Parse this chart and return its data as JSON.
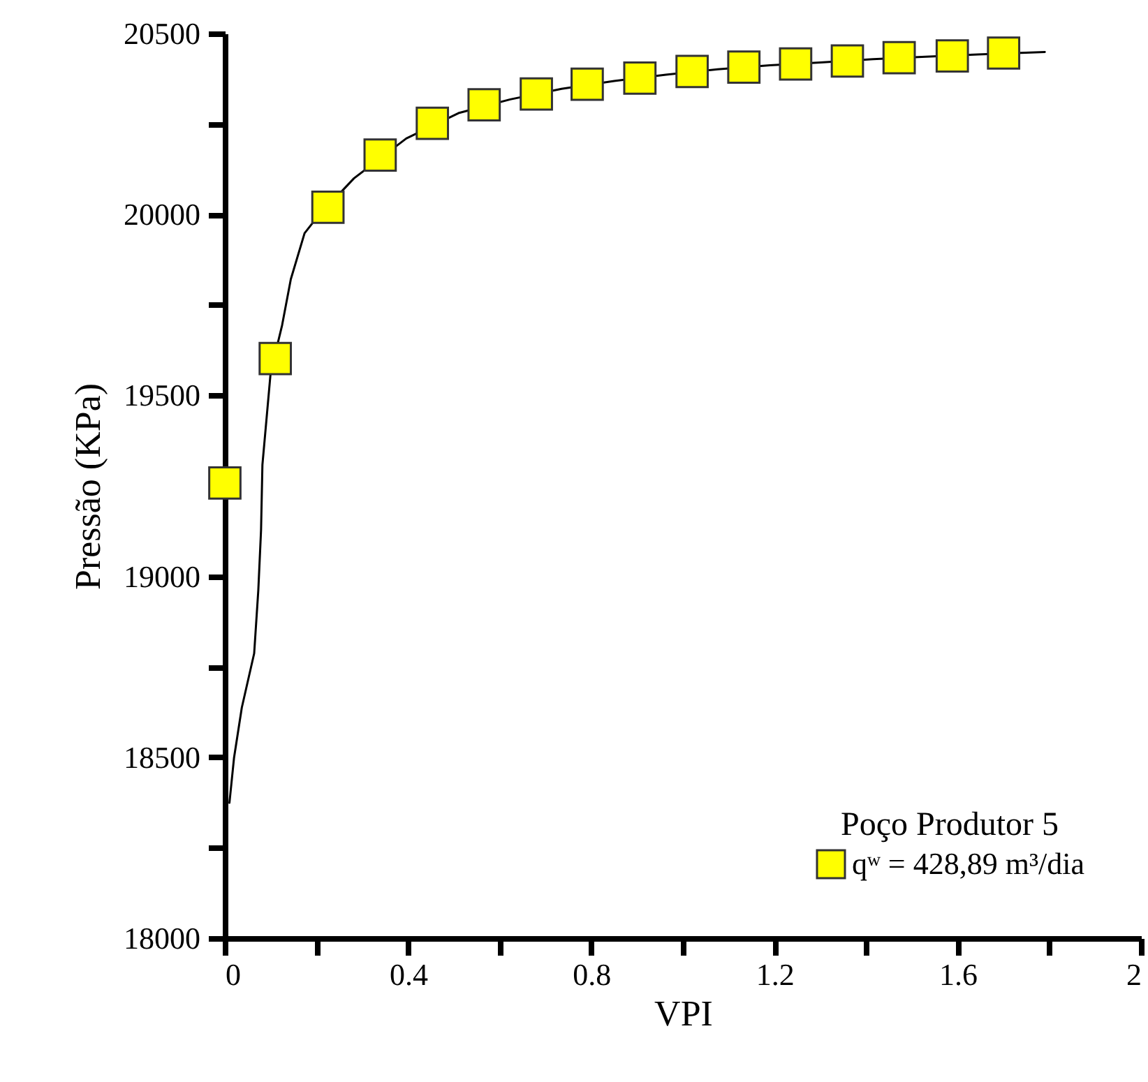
{
  "chart_data": {
    "type": "line",
    "xlabel": "VPI",
    "ylabel": "Pressão (KPa)",
    "legend_title": "Poço Produtor 5",
    "legend": "bottom right",
    "grid": false,
    "xlim": [
      0,
      2
    ],
    "ylim": [
      18000,
      20500
    ],
    "xticks": [
      0,
      {
        "value": 0.2,
        "label": null
      },
      0.4,
      {
        "value": 0.6,
        "label": null
      },
      0.8,
      {
        "value": 1.0,
        "label": null
      },
      1.2,
      {
        "value": 1.4,
        "label": null
      },
      1.6,
      {
        "value": 1.8,
        "label": null
      },
      2
    ],
    "yticks": [
      18000,
      {
        "value": 18250,
        "label": null
      },
      18500,
      {
        "value": 18750,
        "label": null
      },
      19000,
      {
        "value": 19250,
        "label": null
      },
      19500,
      {
        "value": 19750,
        "label": null
      },
      20000,
      {
        "value": 20250,
        "label": null
      },
      20500
    ],
    "series": [
      {
        "name": "qʷ = 428,89 m³/dia",
        "type": "scatter",
        "marker": "square",
        "color": "#ffff00",
        "x": [
          0,
          0.11,
          0.225,
          0.339,
          0.453,
          0.566,
          0.68,
          0.791,
          0.906,
          1.02,
          1.133,
          1.246,
          1.359,
          1.472,
          1.588,
          1.7
        ],
        "values": [
          19258,
          19602,
          20020,
          20164,
          20252,
          20303,
          20333,
          20360,
          20377,
          20395,
          20407,
          20416,
          20424,
          20433,
          20438,
          20446
        ]
      },
      {
        "type": "line",
        "marker": "none",
        "line_style": "solid",
        "color": "#000000",
        "x": [
          0.01,
          0.02,
          0.037,
          0.064,
          0.073,
          0.079,
          0.082,
          0.1,
          0.125,
          0.144,
          0.174,
          0.2,
          0.282,
          0.396,
          0.51,
          0.623,
          0.735,
          0.85,
          0.963,
          1.076,
          1.19,
          1.3,
          1.415,
          1.53,
          1.644,
          1.79
        ],
        "values": [
          18374,
          18498,
          18637,
          18787,
          18961,
          19127,
          19308,
          19563,
          19694,
          19821,
          19948,
          19990,
          20100,
          20210,
          20280,
          20318,
          20347,
          20369,
          20386,
          20401,
          20412,
          20420,
          20429,
          20436,
          20442,
          20449
        ]
      }
    ]
  }
}
